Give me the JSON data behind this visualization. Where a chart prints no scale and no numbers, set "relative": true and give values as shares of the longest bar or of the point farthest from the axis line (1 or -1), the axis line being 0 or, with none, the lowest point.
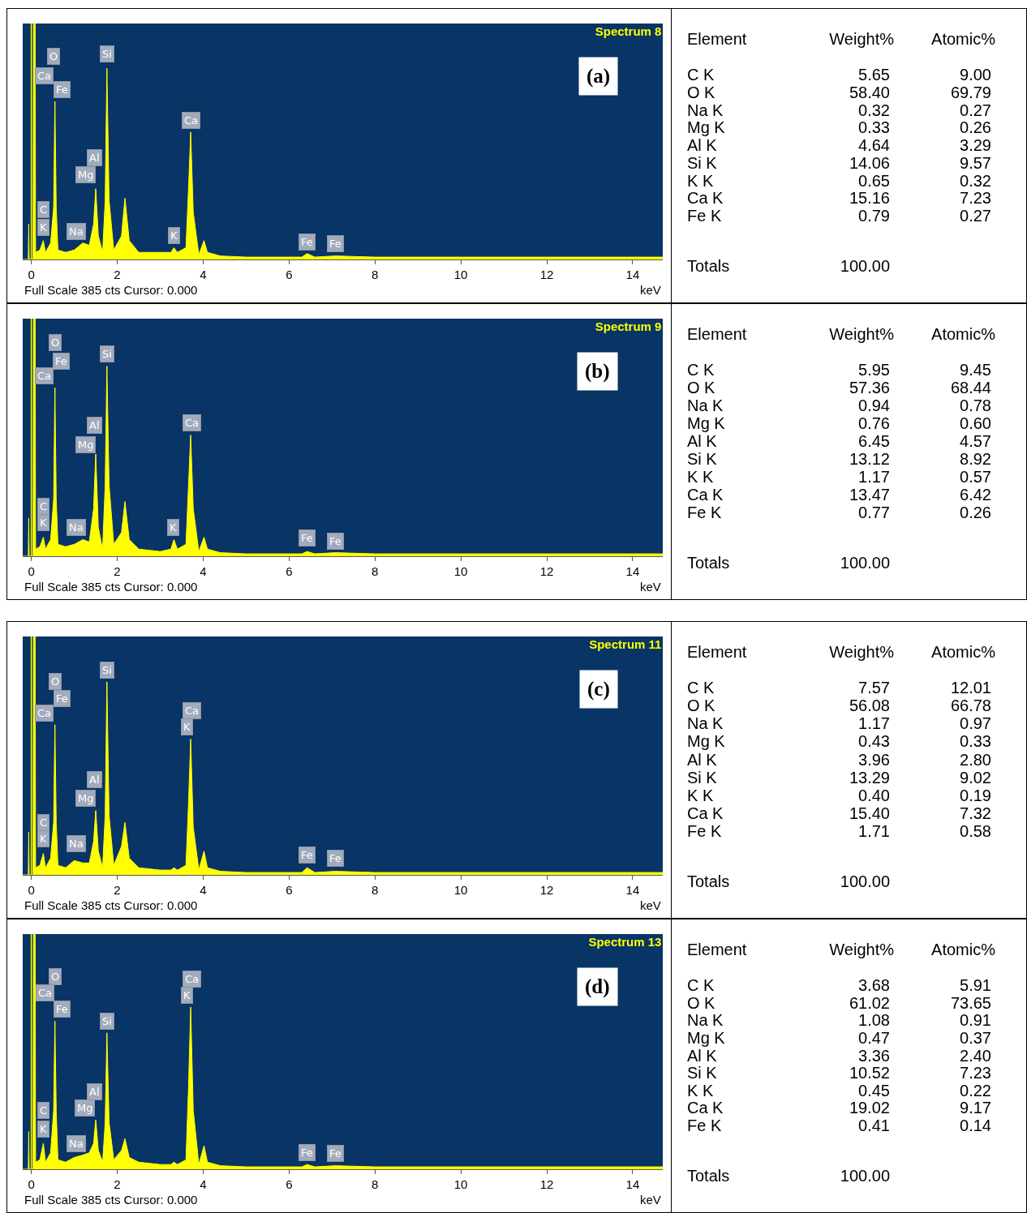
{
  "chart_data": [
    {
      "type": "area",
      "title": "Spectrum 8",
      "xlabel": "keV",
      "color": "#ffff00",
      "relative": true,
      "xlim": [
        -0.2,
        14.7
      ],
      "xticks": [
        0,
        2,
        4,
        6,
        8,
        10,
        12,
        14
      ],
      "x": [
        -0.2,
        -0.07,
        -0.06,
        -0.05,
        0.04,
        0.05,
        0.09,
        0.1,
        0.2,
        0.28,
        0.33,
        0.45,
        0.52,
        0.55,
        0.58,
        0.62,
        0.8,
        1.0,
        1.2,
        1.35,
        1.45,
        1.5,
        1.56,
        1.66,
        1.72,
        1.76,
        1.81,
        1.92,
        2.1,
        2.18,
        2.28,
        2.5,
        3.0,
        3.25,
        3.32,
        3.4,
        3.6,
        3.66,
        3.71,
        3.77,
        3.9,
        4.02,
        4.1,
        4.4,
        5,
        6.3,
        6.42,
        6.6,
        7.08,
        8,
        10,
        12,
        14,
        14.7
      ],
      "values": [
        0,
        0,
        0.15,
        0,
        0,
        1,
        1,
        0.03,
        0.04,
        0.08,
        0.03,
        0.07,
        0.22,
        0.67,
        0.22,
        0.04,
        0.03,
        0.04,
        0.07,
        0.06,
        0.15,
        0.3,
        0.1,
        0.03,
        0.25,
        0.81,
        0.25,
        0.04,
        0.1,
        0.26,
        0.08,
        0.03,
        0.03,
        0.03,
        0.05,
        0.03,
        0.05,
        0.3,
        0.54,
        0.2,
        0.02,
        0.08,
        0.03,
        0.015,
        0.01,
        0.01,
        0.025,
        0.01,
        0.015,
        0.01,
        0.01,
        0.01,
        0.01,
        0.01
      ],
      "ref_lines": [
        {
          "axis": "x",
          "value": 0,
          "color": "#ffff00"
        }
      ],
      "annotations": [
        "(a)",
        "Full Scale 385 cts Cursor: 0.000",
        {
          "text": "O",
          "x": 0.52,
          "y": 0.86
        },
        {
          "text": "Ca",
          "x": 0.3,
          "y": 0.78
        },
        {
          "text": "Fe",
          "x": 0.72,
          "y": 0.72
        },
        {
          "text": "Si",
          "x": 1.76,
          "y": 0.87
        },
        {
          "text": "Al",
          "x": 1.47,
          "y": 0.43
        },
        {
          "text": "Mg",
          "x": 1.26,
          "y": 0.36
        },
        {
          "text": "C",
          "x": 0.28,
          "y": 0.21
        },
        {
          "text": "K",
          "x": 0.28,
          "y": 0.135
        },
        {
          "text": "Na",
          "x": 1.05,
          "y": 0.12
        },
        {
          "text": "K",
          "x": 3.32,
          "y": 0.1
        },
        {
          "text": "Ca",
          "x": 3.71,
          "y": 0.59
        },
        {
          "text": "Fe",
          "x": 6.42,
          "y": 0.075
        },
        {
          "text": "Fe",
          "x": 7.08,
          "y": 0.066
        }
      ]
    },
    {
      "type": "other",
      "annotations": [
        "Element"
      ],
      "categories": [
        "C K",
        "O K",
        "Na K",
        "Mg K",
        "Al K",
        "Si K",
        "K K",
        "Ca K",
        "Fe K",
        "Totals"
      ],
      "series": [
        {
          "name": "Weight%",
          "values": [
            5.65,
            58.4,
            0.32,
            0.33,
            4.64,
            14.06,
            0.65,
            15.16,
            0.79,
            100.0
          ],
          "value_labels": [
            "5.65",
            "58.40",
            "0.32",
            "0.33",
            "4.64",
            "14.06",
            "0.65",
            "15.16",
            "0.79",
            "100.00"
          ]
        },
        {
          "name": "Atomic%",
          "values": [
            9.0,
            69.79,
            0.27,
            0.26,
            3.29,
            9.57,
            0.32,
            7.23,
            0.27,
            null
          ],
          "value_labels": [
            "9.00",
            "69.79",
            "0.27",
            "0.26",
            "3.29",
            "9.57",
            "0.32",
            "7.23",
            "0.27",
            null
          ]
        }
      ]
    },
    {
      "type": "area",
      "title": "Spectrum 9",
      "xlabel": "keV",
      "color": "#ffff00",
      "relative": true,
      "xlim": [
        -0.2,
        14.7
      ],
      "xticks": [
        0,
        2,
        4,
        6,
        8,
        10,
        12,
        14
      ],
      "x": [
        -0.2,
        -0.07,
        -0.06,
        -0.05,
        0.04,
        0.05,
        0.09,
        0.1,
        0.2,
        0.28,
        0.33,
        0.45,
        0.52,
        0.55,
        0.58,
        0.62,
        0.8,
        1.0,
        1.2,
        1.35,
        1.45,
        1.5,
        1.56,
        1.66,
        1.72,
        1.76,
        1.81,
        1.92,
        2.1,
        2.18,
        2.28,
        2.5,
        3.0,
        3.25,
        3.32,
        3.4,
        3.6,
        3.66,
        3.71,
        3.77,
        3.9,
        4.02,
        4.1,
        4.4,
        5,
        6.3,
        6.42,
        6.6,
        7.08,
        8,
        10,
        12,
        14,
        14.7
      ],
      "values": [
        0,
        0,
        0.16,
        0,
        0,
        1,
        1,
        0.03,
        0.04,
        0.08,
        0.03,
        0.07,
        0.24,
        0.71,
        0.24,
        0.05,
        0.04,
        0.05,
        0.07,
        0.06,
        0.2,
        0.43,
        0.12,
        0.03,
        0.3,
        0.8,
        0.3,
        0.05,
        0.1,
        0.23,
        0.07,
        0.03,
        0.02,
        0.03,
        0.07,
        0.03,
        0.05,
        0.3,
        0.51,
        0.2,
        0.02,
        0.08,
        0.03,
        0.015,
        0.01,
        0.01,
        0.02,
        0.01,
        0.015,
        0.01,
        0.01,
        0.01,
        0.01,
        0.01
      ],
      "ref_lines": [
        {
          "axis": "x",
          "value": 0,
          "color": "#ffff00"
        }
      ],
      "annotations": [
        "(b)",
        "Full Scale 385 cts Cursor: 0.000",
        {
          "text": "O",
          "x": 0.55,
          "y": 0.9
        },
        {
          "text": "Fe",
          "x": 0.7,
          "y": 0.82
        },
        {
          "text": "Ca",
          "x": 0.3,
          "y": 0.76
        },
        {
          "text": "Si",
          "x": 1.77,
          "y": 0.85
        },
        {
          "text": "Al",
          "x": 1.47,
          "y": 0.55
        },
        {
          "text": "Mg",
          "x": 1.27,
          "y": 0.47
        },
        {
          "text": "C",
          "x": 0.28,
          "y": 0.21
        },
        {
          "text": "K",
          "x": 0.28,
          "y": 0.14
        },
        {
          "text": "Na",
          "x": 1.05,
          "y": 0.12
        },
        {
          "text": "K",
          "x": 3.31,
          "y": 0.12
        },
        {
          "text": "Ca",
          "x": 3.73,
          "y": 0.56
        },
        {
          "text": "Fe",
          "x": 6.42,
          "y": 0.076
        },
        {
          "text": "Fe",
          "x": 7.08,
          "y": 0.064
        }
      ]
    },
    {
      "type": "other",
      "annotations": [
        "Element"
      ],
      "categories": [
        "C K",
        "O K",
        "Na K",
        "Mg K",
        "Al K",
        "Si K",
        "K K",
        "Ca K",
        "Fe K",
        "Totals"
      ],
      "series": [
        {
          "name": "Weight%",
          "values": [
            5.95,
            57.36,
            0.94,
            0.76,
            6.45,
            13.12,
            1.17,
            13.47,
            0.77,
            100.0
          ],
          "value_labels": [
            "5.95",
            "57.36",
            "0.94",
            "0.76",
            "6.45",
            "13.12",
            "1.17",
            "13.47",
            "0.77",
            "100.00"
          ]
        },
        {
          "name": "Atomic%",
          "values": [
            9.45,
            68.44,
            0.78,
            0.6,
            4.57,
            8.92,
            0.57,
            6.42,
            0.26,
            null
          ],
          "value_labels": [
            "9.45",
            "68.44",
            "0.78",
            "0.60",
            "4.57",
            "8.92",
            "0.57",
            "6.42",
            "0.26",
            null
          ]
        }
      ]
    },
    {
      "type": "area",
      "title": "Spectrum 11",
      "xlabel": "keV",
      "color": "#ffff00",
      "relative": true,
      "xlim": [
        -0.2,
        14.7
      ],
      "xticks": [
        0,
        2,
        4,
        6,
        8,
        10,
        12,
        14
      ],
      "x": [
        -0.2,
        -0.07,
        -0.06,
        -0.05,
        0.04,
        0.05,
        0.09,
        0.1,
        0.2,
        0.28,
        0.33,
        0.45,
        0.52,
        0.55,
        0.58,
        0.62,
        0.8,
        1.0,
        1.2,
        1.35,
        1.45,
        1.5,
        1.56,
        1.66,
        1.72,
        1.76,
        1.81,
        1.92,
        2.1,
        2.18,
        2.28,
        2.5,
        3.0,
        3.25,
        3.32,
        3.4,
        3.6,
        3.66,
        3.71,
        3.77,
        3.9,
        4.02,
        4.1,
        4.4,
        5,
        6.3,
        6.42,
        6.6,
        7.08,
        8,
        10,
        12,
        14,
        14.7
      ],
      "values": [
        0,
        0,
        0.18,
        0,
        0,
        1,
        1,
        0.03,
        0.04,
        0.09,
        0.03,
        0.07,
        0.22,
        0.63,
        0.22,
        0.04,
        0.03,
        0.06,
        0.05,
        0.05,
        0.14,
        0.27,
        0.1,
        0.03,
        0.25,
        0.81,
        0.25,
        0.04,
        0.12,
        0.22,
        0.07,
        0.03,
        0.02,
        0.02,
        0.03,
        0.02,
        0.04,
        0.3,
        0.57,
        0.2,
        0.02,
        0.1,
        0.03,
        0.015,
        0.01,
        0.01,
        0.03,
        0.01,
        0.015,
        0.01,
        0.01,
        0.01,
        0.01,
        0.01
      ],
      "ref_lines": [
        {
          "axis": "x",
          "value": 0,
          "color": "#ffff00"
        }
      ],
      "annotations": [
        "(c)",
        "Full Scale 385 cts Cursor: 0.000",
        {
          "text": "O",
          "x": 0.55,
          "y": 0.81
        },
        {
          "text": "Fe",
          "x": 0.72,
          "y": 0.74
        },
        {
          "text": "Ca",
          "x": 0.3,
          "y": 0.68
        },
        {
          "text": "Si",
          "x": 1.77,
          "y": 0.86
        },
        {
          "text": "Ca",
          "x": 3.73,
          "y": 0.69
        },
        {
          "text": "K",
          "x": 3.62,
          "y": 0.62
        },
        {
          "text": "Al",
          "x": 1.47,
          "y": 0.4
        },
        {
          "text": "Mg",
          "x": 1.27,
          "y": 0.32
        },
        {
          "text": "C",
          "x": 0.28,
          "y": 0.22
        },
        {
          "text": "K",
          "x": 0.28,
          "y": 0.15
        },
        {
          "text": "Na",
          "x": 1.05,
          "y": 0.13
        },
        {
          "text": "Fe",
          "x": 6.42,
          "y": 0.084
        },
        {
          "text": "Fe",
          "x": 7.08,
          "y": 0.069
        }
      ]
    },
    {
      "type": "other",
      "annotations": [
        "Element"
      ],
      "categories": [
        "C K",
        "O K",
        "Na K",
        "Mg K",
        "Al K",
        "Si K",
        "K K",
        "Ca K",
        "Fe K",
        "Totals"
      ],
      "series": [
        {
          "name": "Weight%",
          "values": [
            7.57,
            56.08,
            1.17,
            0.43,
            3.96,
            13.29,
            0.4,
            15.4,
            1.71,
            100.0
          ],
          "value_labels": [
            "7.57",
            "56.08",
            "1.17",
            "0.43",
            "3.96",
            "13.29",
            "0.40",
            "15.40",
            "1.71",
            "100.00"
          ]
        },
        {
          "name": "Atomic%",
          "values": [
            12.01,
            66.78,
            0.97,
            0.33,
            2.8,
            9.02,
            0.19,
            7.32,
            0.58,
            null
          ],
          "value_labels": [
            "12.01",
            "66.78",
            "0.97",
            "0.33",
            "2.80",
            "9.02",
            "0.19",
            "7.32",
            "0.58",
            null
          ]
        }
      ]
    },
    {
      "type": "area",
      "title": "Spectrum 13",
      "xlabel": "keV",
      "color": "#ffff00",
      "relative": true,
      "xlim": [
        -0.2,
        14.7
      ],
      "xticks": [
        0,
        2,
        4,
        6,
        8,
        10,
        12,
        14
      ],
      "x": [
        -0.2,
        -0.07,
        -0.06,
        -0.05,
        0.04,
        0.05,
        0.09,
        0.1,
        0.2,
        0.28,
        0.33,
        0.45,
        0.52,
        0.55,
        0.58,
        0.62,
        0.8,
        1.0,
        1.2,
        1.35,
        1.45,
        1.5,
        1.56,
        1.66,
        1.72,
        1.76,
        1.81,
        1.92,
        2.1,
        2.18,
        2.28,
        2.5,
        3.0,
        3.25,
        3.32,
        3.4,
        3.6,
        3.66,
        3.71,
        3.77,
        3.9,
        4.02,
        4.1,
        4.4,
        5,
        6.3,
        6.42,
        6.6,
        7.08,
        8,
        10,
        12,
        14,
        14.7
      ],
      "values": [
        0,
        0,
        0.16,
        0,
        0,
        1,
        1,
        0.03,
        0.04,
        0.11,
        0.03,
        0.07,
        0.25,
        0.63,
        0.25,
        0.04,
        0.03,
        0.05,
        0.06,
        0.07,
        0.11,
        0.21,
        0.08,
        0.03,
        0.2,
        0.58,
        0.2,
        0.04,
        0.08,
        0.13,
        0.05,
        0.03,
        0.02,
        0.02,
        0.03,
        0.02,
        0.04,
        0.35,
        0.69,
        0.25,
        0.02,
        0.1,
        0.03,
        0.015,
        0.01,
        0.01,
        0.02,
        0.01,
        0.015,
        0.01,
        0.01,
        0.01,
        0.01,
        0.01
      ],
      "ref_lines": [
        {
          "axis": "x",
          "value": 0,
          "color": "#ffff00"
        }
      ],
      "annotations": [
        "(d)",
        "Full Scale 385 cts Cursor: 0.000",
        {
          "text": "O",
          "x": 0.55,
          "y": 0.82
        },
        {
          "text": "Ca",
          "x": 0.32,
          "y": 0.75
        },
        {
          "text": "Fe",
          "x": 0.72,
          "y": 0.68
        },
        {
          "text": "Si",
          "x": 1.77,
          "y": 0.63
        },
        {
          "text": "Ca",
          "x": 3.74,
          "y": 0.81
        },
        {
          "text": "K",
          "x": 3.62,
          "y": 0.74
        },
        {
          "text": "Al",
          "x": 1.48,
          "y": 0.33
        },
        {
          "text": "Mg",
          "x": 1.25,
          "y": 0.26
        },
        {
          "text": "C",
          "x": 0.28,
          "y": 0.25
        },
        {
          "text": "K",
          "x": 0.28,
          "y": 0.17
        },
        {
          "text": "Na",
          "x": 1.05,
          "y": 0.11
        },
        {
          "text": "Fe",
          "x": 6.42,
          "y": 0.07
        },
        {
          "text": "Fe",
          "x": 7.08,
          "y": 0.068
        }
      ]
    },
    {
      "type": "other",
      "annotations": [
        "Element"
      ],
      "categories": [
        "C K",
        "O K",
        "Na K",
        "Mg K",
        "Al K",
        "Si K",
        "K K",
        "Ca K",
        "Fe K",
        "Totals"
      ],
      "series": [
        {
          "name": "Weight%",
          "values": [
            3.68,
            61.02,
            1.08,
            0.47,
            3.36,
            10.52,
            0.45,
            19.02,
            0.41,
            100.0
          ],
          "value_labels": [
            "3.68",
            "61.02",
            "1.08",
            "0.47",
            "3.36",
            "10.52",
            "0.45",
            "19.02",
            "0.41",
            "100.00"
          ]
        },
        {
          "name": "Atomic%",
          "values": [
            5.91,
            73.65,
            0.91,
            0.37,
            2.4,
            7.23,
            0.22,
            9.17,
            0.14,
            null
          ],
          "value_labels": [
            "5.91",
            "73.65",
            "0.91",
            "0.37",
            "2.40",
            "7.23",
            "0.22",
            "9.17",
            "0.14",
            null
          ]
        }
      ]
    }
  ]
}
